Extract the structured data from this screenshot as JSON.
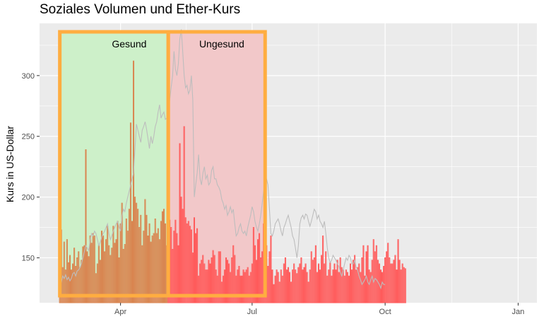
{
  "chart_data": {
    "type": "bar",
    "title": "Soziales Volumen und Ether-Kurs",
    "xlabel": "",
    "ylabel": "Kurs in US-Dollar",
    "ylim": [
      113,
      343
    ],
    "y_ticks": [
      150,
      200,
      250,
      300
    ],
    "x_ticks": [
      {
        "label": "Apr",
        "day": 90
      },
      {
        "label": "Jul",
        "day": 181
      },
      {
        "label": "Oct",
        "day": 273
      },
      {
        "label": "Jan",
        "day": 365
      }
    ],
    "x_range_days": [
      34,
      378
    ],
    "grid": true,
    "regions": [
      {
        "label": "Gesund",
        "start_day": 48,
        "end_day": 123,
        "fill": "#cdf0c9",
        "text_day": 96
      },
      {
        "label": "Ungesund",
        "start_day": 123,
        "end_day": 190,
        "fill": "#f2c8c9",
        "text_day": 160
      }
    ],
    "colors": {
      "panel": "#ebebeb",
      "grid_major": "#ffffff",
      "bar_healthy": "#d9844f",
      "bar_unhealthy": "#ff5a5a",
      "price_line": "#bdbdbd",
      "highlight": "#ffad40"
    },
    "bars": {
      "start_day": 48,
      "values": [
        170,
        173,
        142,
        163,
        140,
        165,
        146,
        152,
        140,
        145,
        158,
        143,
        150,
        155,
        142,
        148,
        159,
        160,
        239,
        155,
        151,
        168,
        162,
        170,
        168,
        137,
        145,
        160,
        148,
        172,
        168,
        155,
        165,
        176,
        160,
        152,
        158,
        176,
        162,
        165,
        180,
        150,
        178,
        195,
        157,
        161,
        182,
        172,
        190,
        261,
        180,
        312,
        200,
        195,
        190,
        175,
        185,
        160,
        172,
        198,
        185,
        168,
        178,
        163,
        168,
        170,
        182,
        170,
        174,
        165,
        180,
        188,
        190,
        178,
        160,
        175,
        181,
        175,
        157,
        172,
        181,
        170,
        160,
        244,
        200,
        190,
        258,
        183,
        178,
        180,
        176,
        173,
        154,
        183,
        170,
        174,
        135,
        145,
        148,
        152,
        145,
        140,
        140,
        148,
        145,
        150,
        156,
        152,
        140,
        135,
        155,
        155,
        130,
        135,
        140,
        150,
        148,
        145,
        138,
        150,
        160,
        152,
        135,
        140,
        143,
        135,
        135,
        140,
        138,
        140,
        142,
        135,
        138,
        145,
        175,
        160,
        148,
        165,
        170,
        150,
        155,
        178,
        170,
        160,
        143,
        155,
        168,
        140,
        128,
        135,
        140,
        138,
        130,
        140,
        135,
        145,
        150,
        140,
        142,
        138,
        130,
        140,
        145,
        140,
        137,
        142,
        145,
        150,
        140,
        142,
        145,
        138,
        130,
        140,
        155,
        148,
        150,
        160,
        138,
        145,
        140,
        152,
        168,
        145,
        155,
        135,
        140,
        146,
        135,
        140,
        145,
        140,
        148,
        138,
        150,
        142,
        140,
        135,
        140,
        138,
        135,
        145,
        140,
        148,
        152,
        140,
        142,
        145,
        138,
        150,
        160,
        135,
        155,
        160,
        140,
        138,
        148,
        165,
        155,
        160,
        148,
        145,
        140,
        138,
        143,
        150,
        155,
        162,
        150,
        145,
        145,
        148,
        152,
        140,
        165,
        148,
        140,
        145,
        142,
        141
      ]
    },
    "price": {
      "start_day": 48,
      "values": [
        125,
        130,
        135,
        133,
        136,
        132,
        134,
        131,
        133,
        137,
        138,
        135,
        139,
        140,
        142,
        145,
        150,
        155,
        160,
        158,
        156,
        165,
        170,
        168,
        172,
        170,
        165,
        160,
        163,
        167,
        170,
        172,
        175,
        178,
        170,
        165,
        168,
        172,
        175,
        178,
        180,
        175,
        172,
        185,
        190,
        188,
        195,
        200,
        205,
        210,
        215,
        220,
        240,
        260,
        255,
        250,
        245,
        255,
        258,
        262,
        256,
        248,
        240,
        250,
        244,
        250,
        258,
        262,
        270,
        276,
        265,
        268,
        270,
        264,
        265,
        272,
        280,
        290,
        300,
        320,
        305,
        300,
        310,
        330,
        338,
        320,
        300,
        290,
        292,
        285,
        288,
        300,
        280,
        200,
        210,
        220,
        235,
        215,
        210,
        220,
        225,
        215,
        218,
        210,
        212,
        222,
        225,
        215,
        215,
        210,
        208,
        205,
        198,
        195,
        190,
        193,
        185,
        188,
        192,
        187,
        190,
        178,
        168,
        170,
        175,
        178,
        172,
        170,
        172,
        168,
        175,
        180,
        185,
        192,
        188,
        180,
        175,
        172,
        178,
        185,
        195,
        205,
        210,
        215,
        210,
        190,
        170,
        168,
        172,
        178,
        180,
        182,
        178,
        172,
        168,
        175,
        178,
        182,
        185,
        180,
        175,
        168,
        165,
        158,
        150,
        160,
        178,
        183,
        185,
        182,
        186,
        185,
        180,
        176,
        180,
        185,
        190,
        188,
        182,
        185,
        180,
        178,
        175,
        180,
        170,
        158,
        150,
        146,
        148,
        152,
        150,
        148,
        145,
        143,
        138,
        135,
        140,
        145,
        150,
        148,
        152,
        150,
        145,
        145,
        148,
        142,
        140,
        135,
        132,
        128,
        130,
        132,
        135,
        130,
        128,
        132,
        135,
        130,
        133,
        132,
        130,
        128,
        125,
        130,
        128,
        128
      ]
    }
  }
}
